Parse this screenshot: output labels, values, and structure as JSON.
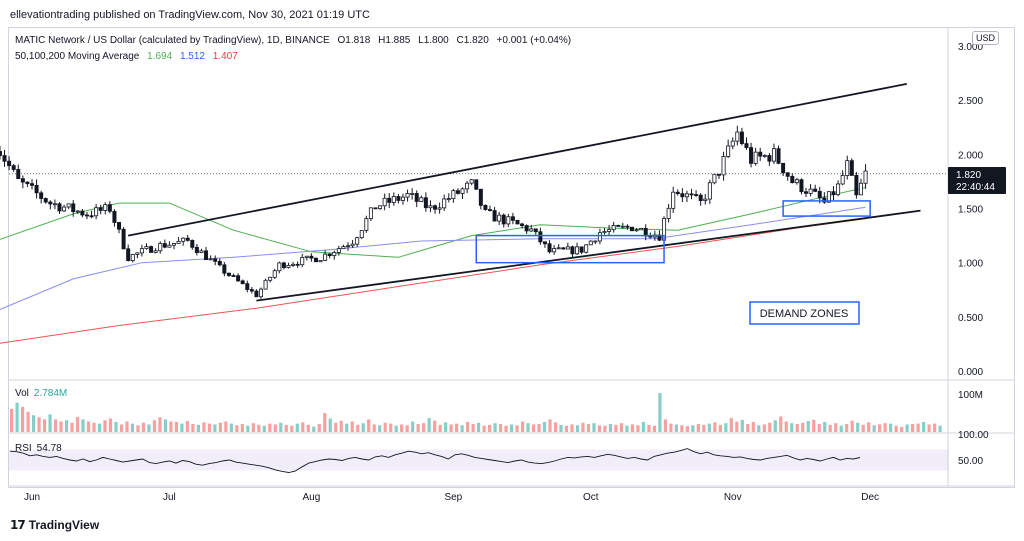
{
  "publish_line": "ellevationtrading published on TradingView.com, Nov 30, 2021 01:19 UTC",
  "header": {
    "symbol": "MATIC Network / US Dollar (calculated by TradingView), 1D, BINANCE",
    "open": "O1.818",
    "high": "H1.885",
    "low": "L1.800",
    "close": "C1.820",
    "change": "+0.001 (+0.04%)",
    "ma_label": "50,100,200 Moving Average",
    "ma50": "1.694",
    "ma100": "1.512",
    "ma200": "1.407",
    "currency": "USD"
  },
  "price_badge": {
    "price": "1.820",
    "countdown": "22:40:44"
  },
  "annotation": "DEMAND ZONES",
  "volume": {
    "label": "Vol",
    "value": "2.784M",
    "axis_label": "100M"
  },
  "rsi": {
    "label": "RSI",
    "value": "54.78",
    "axis_top": "100.00",
    "axis_mid": "50.00"
  },
  "footer": {
    "brand": "TradingView"
  },
  "colors": {
    "up": "#26a69a",
    "down": "#ef5350",
    "candle": "#131722",
    "ma50": "#4caf50",
    "ma100": "#8c8cf0",
    "ma200": "#ef5350",
    "zone": "#2962ff",
    "badge_bg": "#131722"
  },
  "chart_data": {
    "type": "candlestick",
    "title": "MATIC Network / US Dollar (calculated by TradingView), 1D, BINANCE",
    "y_ticks": [
      "3.000",
      "2.500",
      "2.000",
      "1.500",
      "1.000",
      "0.500",
      "0.000"
    ],
    "ylim": [
      0,
      3.0
    ],
    "x_ticks": [
      "Jun",
      "Jul",
      "Aug",
      "Sep",
      "Oct",
      "Nov",
      "Dec"
    ],
    "close_path": [
      {
        "date": "2021-05-24",
        "close": 2.1
      },
      {
        "date": "2021-05-29",
        "close": 1.75
      },
      {
        "date": "2021-06-05",
        "close": 1.55
      },
      {
        "date": "2021-06-13",
        "close": 1.45
      },
      {
        "date": "2021-06-18",
        "close": 1.5
      },
      {
        "date": "2021-06-22",
        "close": 1.05
      },
      {
        "date": "2021-06-28",
        "close": 1.15
      },
      {
        "date": "2021-07-05",
        "close": 1.2
      },
      {
        "date": "2021-07-12",
        "close": 0.95
      },
      {
        "date": "2021-07-20",
        "close": 0.7
      },
      {
        "date": "2021-07-25",
        "close": 0.98
      },
      {
        "date": "2021-08-03",
        "close": 1.05
      },
      {
        "date": "2021-08-10",
        "close": 1.2
      },
      {
        "date": "2021-08-15",
        "close": 1.52
      },
      {
        "date": "2021-08-22",
        "close": 1.62
      },
      {
        "date": "2021-08-27",
        "close": 1.5
      },
      {
        "date": "2021-09-05",
        "close": 1.72
      },
      {
        "date": "2021-09-08",
        "close": 1.45
      },
      {
        "date": "2021-09-13",
        "close": 1.38
      },
      {
        "date": "2021-09-18",
        "close": 1.3
      },
      {
        "date": "2021-09-22",
        "close": 1.1
      },
      {
        "date": "2021-09-29",
        "close": 1.12
      },
      {
        "date": "2021-10-03",
        "close": 1.28
      },
      {
        "date": "2021-10-10",
        "close": 1.33
      },
      {
        "date": "2021-10-16",
        "close": 1.25
      },
      {
        "date": "2021-10-19",
        "close": 1.68
      },
      {
        "date": "2021-10-25",
        "close": 1.55
      },
      {
        "date": "2021-10-29",
        "close": 1.85
      },
      {
        "date": "2021-11-02",
        "close": 2.2
      },
      {
        "date": "2021-11-05",
        "close": 1.95
      },
      {
        "date": "2021-11-10",
        "close": 2.0
      },
      {
        "date": "2021-11-14",
        "close": 1.75
      },
      {
        "date": "2021-11-18",
        "close": 1.65
      },
      {
        "date": "2021-11-21",
        "close": 1.55
      },
      {
        "date": "2021-11-24",
        "close": 1.7
      },
      {
        "date": "2021-11-26",
        "close": 1.9
      },
      {
        "date": "2021-11-28",
        "close": 1.6
      },
      {
        "date": "2021-11-30",
        "close": 1.82
      }
    ],
    "moving_averages": [
      {
        "period": 50,
        "points": [
          [
            "2021-05-24",
            1.2
          ],
          [
            "2021-06-10",
            1.45
          ],
          [
            "2021-06-20",
            1.55
          ],
          [
            "2021-07-01",
            1.55
          ],
          [
            "2021-07-15",
            1.3
          ],
          [
            "2021-08-01",
            1.1
          ],
          [
            "2021-08-20",
            1.05
          ],
          [
            "2021-09-05",
            1.25
          ],
          [
            "2021-09-20",
            1.35
          ],
          [
            "2021-10-05",
            1.32
          ],
          [
            "2021-10-20",
            1.3
          ],
          [
            "2021-11-05",
            1.45
          ],
          [
            "2021-11-20",
            1.6
          ],
          [
            "2021-11-30",
            1.694
          ]
        ]
      },
      {
        "period": 100,
        "points": [
          [
            "2021-05-24",
            0.55
          ],
          [
            "2021-06-10",
            0.85
          ],
          [
            "2021-06-25",
            1.0
          ],
          [
            "2021-07-15",
            1.05
          ],
          [
            "2021-08-05",
            1.12
          ],
          [
            "2021-08-25",
            1.2
          ],
          [
            "2021-09-20",
            1.22
          ],
          [
            "2021-10-15",
            1.22
          ],
          [
            "2021-11-05",
            1.35
          ],
          [
            "2021-11-30",
            1.512
          ]
        ]
      },
      {
        "period": 200,
        "points": [
          [
            "2021-05-24",
            0.25
          ],
          [
            "2021-06-20",
            0.42
          ],
          [
            "2021-07-20",
            0.58
          ],
          [
            "2021-08-20",
            0.78
          ],
          [
            "2021-09-20",
            0.98
          ],
          [
            "2021-10-20",
            1.15
          ],
          [
            "2021-11-15",
            1.32
          ],
          [
            "2021-11-30",
            1.407
          ]
        ]
      }
    ],
    "trendlines": [
      {
        "name": "upper",
        "from": [
          "2021-06-22",
          1.25
        ],
        "to": [
          "2021-12-09",
          2.65
        ]
      },
      {
        "name": "lower",
        "from": [
          "2021-07-20",
          0.65
        ],
        "to": [
          "2021-12-12",
          1.48
        ]
      }
    ],
    "demand_zones": [
      {
        "from": "2021-09-06",
        "to": "2021-10-17",
        "low": 1.0,
        "high": 1.25
      },
      {
        "from": "2021-11-12",
        "to": "2021-12-01",
        "low": 1.43,
        "high": 1.57
      }
    ],
    "volume_bars_m": [
      55,
      70,
      60,
      48,
      40,
      35,
      30,
      42,
      30,
      25,
      28,
      22,
      36,
      30,
      25,
      22,
      20,
      28,
      32,
      24,
      18,
      25,
      20,
      16,
      22,
      18,
      28,
      35,
      30,
      25,
      24,
      20,
      26,
      19,
      17,
      23,
      20,
      18,
      22,
      25,
      20,
      16,
      19,
      15,
      21,
      17,
      15,
      20,
      18,
      22,
      17,
      15,
      20,
      23,
      17,
      13,
      19,
      45,
      32,
      22,
      27,
      20,
      25,
      17,
      21,
      30,
      18,
      16,
      22,
      20,
      15,
      18,
      16,
      25,
      19,
      21,
      33,
      27,
      17,
      23,
      18,
      20,
      16,
      24,
      19,
      22,
      15,
      17,
      21,
      19,
      15,
      18,
      16,
      25,
      21,
      18,
      19,
      24,
      30,
      23,
      17,
      15,
      18,
      16,
      22,
      19,
      21,
      16,
      15,
      19,
      17,
      21,
      15,
      18,
      16,
      24,
      17,
      15,
      93,
      30,
      20,
      18,
      16,
      14,
      16,
      19,
      17,
      20,
      23,
      17,
      21,
      33,
      25,
      29,
      19,
      24,
      16,
      18,
      22,
      28,
      37,
      25,
      21,
      19,
      22,
      26,
      29,
      19,
      24,
      17,
      21,
      15,
      19,
      27,
      22,
      17,
      23,
      16,
      18,
      21,
      20,
      15,
      12,
      18,
      19,
      20,
      24,
      18,
      20,
      15
    ],
    "rsi_series": [
      67,
      66,
      63,
      58,
      60,
      57,
      55,
      57,
      53,
      50,
      48,
      52,
      47,
      50,
      55,
      52,
      49,
      46,
      48,
      50,
      52,
      45,
      43,
      46,
      48,
      44,
      49,
      47,
      42,
      40,
      43,
      45,
      48,
      50,
      46,
      44,
      42,
      40,
      38,
      35,
      31,
      28,
      26,
      29,
      37,
      44,
      47,
      50,
      52,
      51,
      49,
      53,
      55,
      52,
      50,
      56,
      58,
      55,
      60,
      63,
      67,
      65,
      62,
      64,
      60,
      57,
      52,
      60,
      62,
      59,
      55,
      53,
      51,
      49,
      47,
      45,
      48,
      50,
      46,
      44,
      43,
      45,
      48,
      52,
      55,
      54,
      56,
      57,
      55,
      58,
      61,
      59,
      56,
      53,
      55,
      52,
      50,
      57,
      60,
      63,
      65,
      68,
      72,
      66,
      62,
      65,
      60,
      58,
      57,
      55,
      56,
      53,
      51,
      50,
      53,
      55,
      57,
      59,
      54,
      50,
      53,
      51,
      48,
      52,
      55,
      50,
      53,
      52,
      54.78
    ],
    "last_close": 1.82
  }
}
